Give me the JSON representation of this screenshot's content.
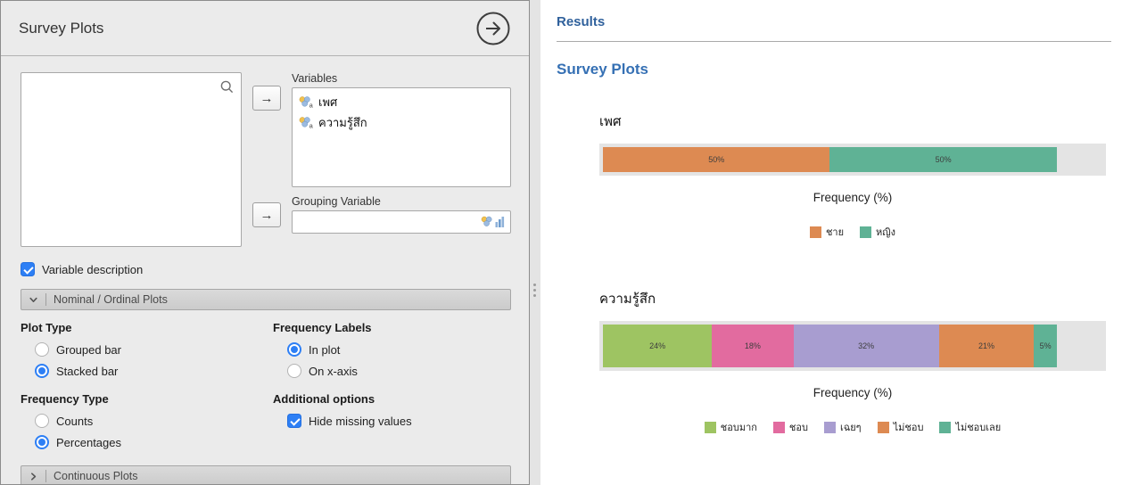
{
  "panel": {
    "title": "Survey Plots",
    "arrow_icon": "→",
    "variables_label": "Variables",
    "variables": [
      "เพศ",
      "ความรู้สึก"
    ],
    "grouping_label": "Grouping Variable",
    "variable_description": {
      "label": "Variable description",
      "checked": true
    },
    "sections": [
      {
        "label": "Nominal / Ordinal Plots",
        "expanded": true
      },
      {
        "label": "Continuous Plots",
        "expanded": false
      }
    ],
    "option_groups": [
      {
        "id": "plot-type",
        "label": "Plot Type",
        "type": "radio",
        "items": [
          {
            "label": "Grouped bar",
            "checked": false
          },
          {
            "label": "Stacked bar",
            "checked": true
          }
        ]
      },
      {
        "id": "frequency-labels",
        "label": "Frequency Labels",
        "type": "radio",
        "items": [
          {
            "label": "In plot",
            "checked": true
          },
          {
            "label": "On x-axis",
            "checked": false
          }
        ]
      },
      {
        "id": "frequency-type",
        "label": "Frequency Type",
        "type": "radio",
        "items": [
          {
            "label": "Counts",
            "checked": false
          },
          {
            "label": "Percentages",
            "checked": true
          }
        ]
      },
      {
        "id": "additional-options",
        "label": "Additional options",
        "type": "checkbox",
        "items": [
          {
            "label": "Hide missing values",
            "checked": true
          }
        ]
      }
    ]
  },
  "results": {
    "title": "Results",
    "heading": "Survey Plots"
  },
  "chart_data": [
    {
      "type": "bar",
      "variant": "horizontal-stacked",
      "title": "เพศ",
      "xlabel": "Frequency (%)",
      "categories": [
        "ชาย",
        "หญิง"
      ],
      "values": [
        50,
        50
      ],
      "value_labels": [
        "50%",
        "50%"
      ],
      "colors": [
        "#dd8a52",
        "#5fb295"
      ],
      "xlim": [
        0,
        100
      ],
      "legend_position": "bottom",
      "track_height": 36
    },
    {
      "type": "bar",
      "variant": "horizontal-stacked",
      "title": "ความรู้สึก",
      "xlabel": "Frequency (%)",
      "categories": [
        "ชอบมาก",
        "ชอบ",
        "เฉยๆ",
        "ไม่ชอบ",
        "ไม่ชอบเลย"
      ],
      "values": [
        24,
        18,
        32,
        21,
        5
      ],
      "value_labels": [
        "24%",
        "18%",
        "32%",
        "21%",
        "5%"
      ],
      "colors": [
        "#9ec462",
        "#e26b9f",
        "#a89dd0",
        "#dd8a52",
        "#5fb295"
      ],
      "xlim": [
        0,
        100
      ],
      "legend_position": "bottom",
      "track_height": 56
    }
  ]
}
